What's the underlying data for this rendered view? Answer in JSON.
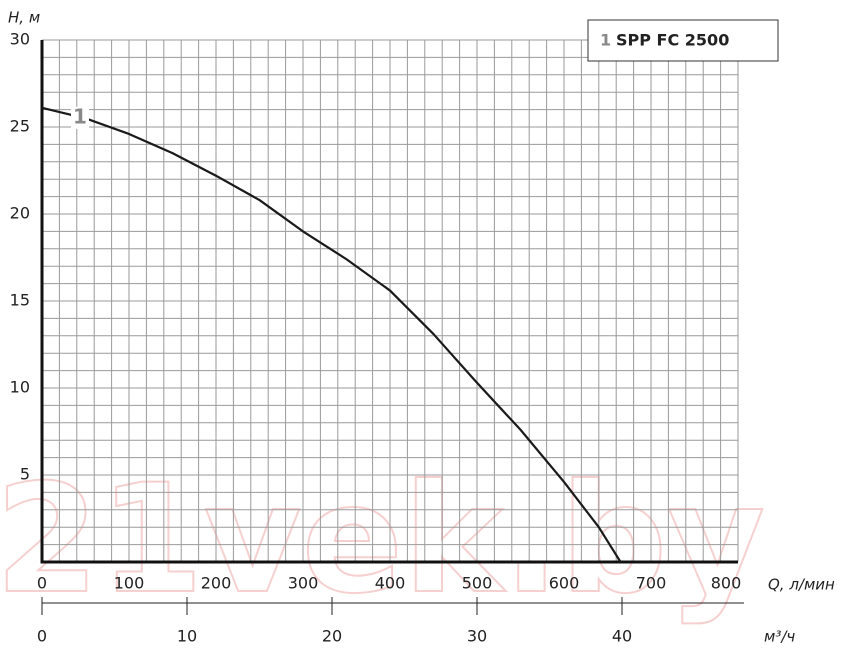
{
  "chart_data": {
    "type": "line",
    "xlabel": "Q, л/мин",
    "ylabel": "H, м",
    "x2label": "м³/ч",
    "watermark": "21vek.by",
    "xlim": [
      0,
      800
    ],
    "xticks": [
      0,
      100,
      200,
      300,
      400,
      500,
      600,
      700,
      800
    ],
    "ylim": [
      0,
      30
    ],
    "yticks": [
      5,
      10,
      15,
      20,
      25,
      30
    ],
    "x2lim": [
      0,
      48
    ],
    "x2ticks": [
      0,
      10,
      20,
      30,
      40
    ],
    "grid": true,
    "series": [
      {
        "name": "SPP FC 2500",
        "label": "1",
        "color": "#1a1a1a",
        "x": [
          0,
          50,
          100,
          150,
          200,
          250,
          300,
          350,
          400,
          450,
          500,
          550,
          600,
          640,
          665
        ],
        "values": [
          26.1,
          25.5,
          24.6,
          23.5,
          22.2,
          20.8,
          19.0,
          17.4,
          15.6,
          13.1,
          10.3,
          7.6,
          4.6,
          2.0,
          0
        ]
      }
    ]
  }
}
